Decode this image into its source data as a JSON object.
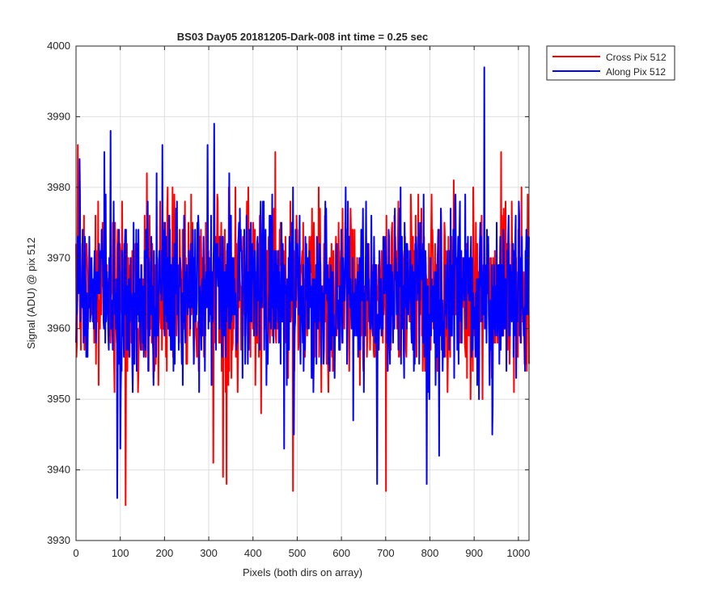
{
  "chart_data": {
    "type": "line",
    "title": "BS03 Day05 20181205-Dark-008 int time = 0.25 sec",
    "xlabel": "Pixels (both dirs on array)",
    "ylabel": "Signal (ADU) @ pix 512",
    "xlim": [
      0,
      1024
    ],
    "ylim": [
      3930,
      4000
    ],
    "xticks": [
      0,
      100,
      200,
      300,
      400,
      500,
      600,
      700,
      800,
      900,
      1000
    ],
    "yticks": [
      3930,
      3940,
      3950,
      3960,
      3970,
      3980,
      3990,
      4000
    ],
    "grid": true,
    "legend_position": "outside-top-right",
    "series": [
      {
        "name": "Cross Pix 512",
        "color": "#ff0000",
        "stats": {
          "n_points": 1024,
          "mean": 3965,
          "min": 3935,
          "max": 3986
        },
        "highlights": [
          [
            4,
            3986
          ],
          [
            112,
            3935
          ],
          [
            160,
            3982
          ],
          [
            190,
            3978
          ],
          [
            310,
            3941
          ],
          [
            332,
            3939
          ],
          [
            340,
            3938
          ],
          [
            450,
            3985
          ],
          [
            490,
            3937
          ],
          [
            700,
            3937
          ],
          [
            918,
            3950
          ],
          [
            960,
            3985
          ],
          [
            1020,
            3979
          ],
          [
            1024,
            3955
          ]
        ]
      },
      {
        "name": "Along Pix 512",
        "color": "#0000ff",
        "stats": {
          "n_points": 1024,
          "mean": 3965,
          "min": 3936,
          "max": 3997
        },
        "highlights": [
          [
            8,
            3984
          ],
          [
            64,
            3985
          ],
          [
            78,
            3988
          ],
          [
            93,
            3936
          ],
          [
            100,
            3943
          ],
          [
            182,
            3982
          ],
          [
            195,
            3986
          ],
          [
            297,
            3986
          ],
          [
            312,
            3989
          ],
          [
            470,
            3943
          ],
          [
            492,
            3945
          ],
          [
            680,
            3938
          ],
          [
            792,
            3938
          ],
          [
            820,
            3942
          ],
          [
            910,
            3950
          ],
          [
            922,
            3997
          ],
          [
            940,
            3945
          ],
          [
            1024,
            3973
          ]
        ]
      }
    ]
  }
}
